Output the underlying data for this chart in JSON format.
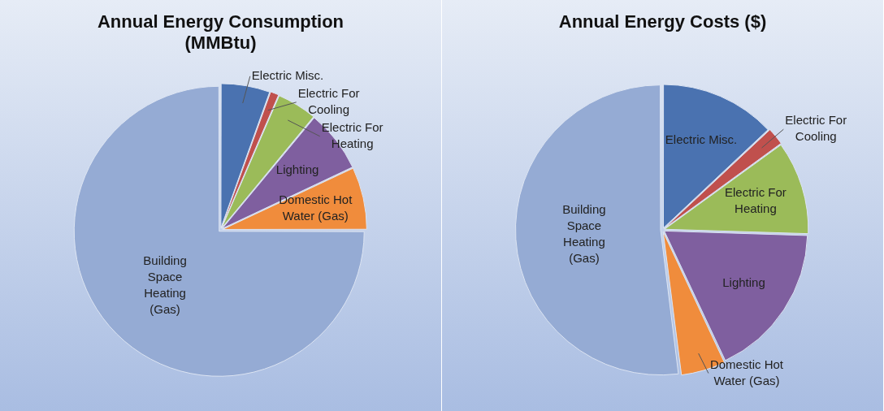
{
  "chart_data": [
    {
      "type": "pie",
      "title": "Annual Energy Consumption (MMBtu)",
      "categories": [
        "Electric Misc.",
        "Electric For Cooling",
        "Electric For Heating",
        "Lighting",
        "Domestic Hot Water (Gas)",
        "Building Space Heating (Gas)"
      ],
      "values": [
        5.5,
        1,
        4.5,
        7,
        7,
        75
      ],
      "colors": [
        "#4a72b0",
        "#c0504d",
        "#9bbb59",
        "#7f5f9f",
        "#f08c3c",
        "#95abd4"
      ],
      "legend": false
    },
    {
      "type": "pie",
      "title": "Annual Energy Costs ($)",
      "categories": [
        "Electric Misc.",
        "Electric For Cooling",
        "Electric For Heating",
        "Lighting",
        "Domestic Hot Water (Gas)",
        "Building Space Heating (Gas)"
      ],
      "values": [
        13,
        2,
        10.5,
        17.5,
        5,
        52
      ],
      "colors": [
        "#4a72b0",
        "#c0504d",
        "#9bbb59",
        "#7f5f9f",
        "#f08c3c",
        "#95abd4"
      ],
      "legend": false
    }
  ]
}
